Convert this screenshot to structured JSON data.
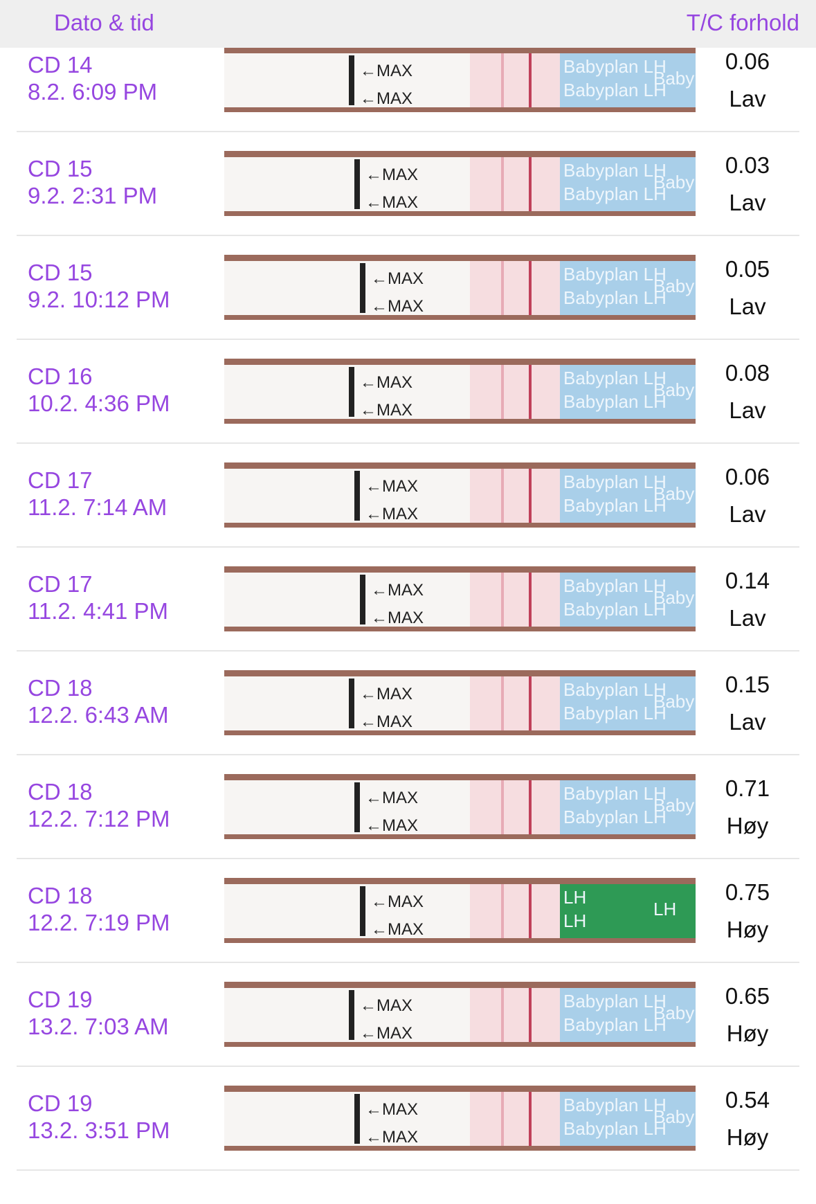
{
  "header": {
    "left": "Dato & tid",
    "right": "T/C forhold"
  },
  "strip": {
    "arrow_label": "←MAX",
    "brand": "Babyplan LH",
    "green_label": "LH"
  },
  "rows": [
    {
      "cd": "CD 14",
      "datetime": "8.2. 6:09 PM",
      "ratio": "0.06",
      "level": "Lav",
      "wrapper_color": "#a9cfe9"
    },
    {
      "cd": "CD 15",
      "datetime": "9.2. 2:31 PM",
      "ratio": "0.03",
      "level": "Lav",
      "wrapper_color": "#a9cfe9"
    },
    {
      "cd": "CD 15",
      "datetime": "9.2. 10:12 PM",
      "ratio": "0.05",
      "level": "Lav",
      "wrapper_color": "#a9cfe9"
    },
    {
      "cd": "CD 16",
      "datetime": "10.2. 4:36 PM",
      "ratio": "0.08",
      "level": "Lav",
      "wrapper_color": "#a9cfe9"
    },
    {
      "cd": "CD 17",
      "datetime": "11.2. 7:14 AM",
      "ratio": "0.06",
      "level": "Lav",
      "wrapper_color": "#a9cfe9"
    },
    {
      "cd": "CD 17",
      "datetime": "11.2. 4:41 PM",
      "ratio": "0.14",
      "level": "Lav",
      "wrapper_color": "#a9cfe9"
    },
    {
      "cd": "CD 18",
      "datetime": "12.2. 6:43 AM",
      "ratio": "0.15",
      "level": "Lav",
      "wrapper_color": "#a9cfe9"
    },
    {
      "cd": "CD 18",
      "datetime": "12.2. 7:12 PM",
      "ratio": "0.71",
      "level": "Høy",
      "wrapper_color": "#a9cfe9"
    },
    {
      "cd": "CD 18",
      "datetime": "12.2. 7:19 PM",
      "ratio": "0.75",
      "level": "Høy",
      "wrapper_color": "#2e9a55"
    },
    {
      "cd": "CD 19",
      "datetime": "13.2. 7:03 AM",
      "ratio": "0.65",
      "level": "Høy",
      "wrapper_color": "#a9cfe9"
    },
    {
      "cd": "CD 19",
      "datetime": "13.2. 3:51 PM",
      "ratio": "0.54",
      "level": "Høy",
      "wrapper_color": "#a9cfe9"
    }
  ]
}
